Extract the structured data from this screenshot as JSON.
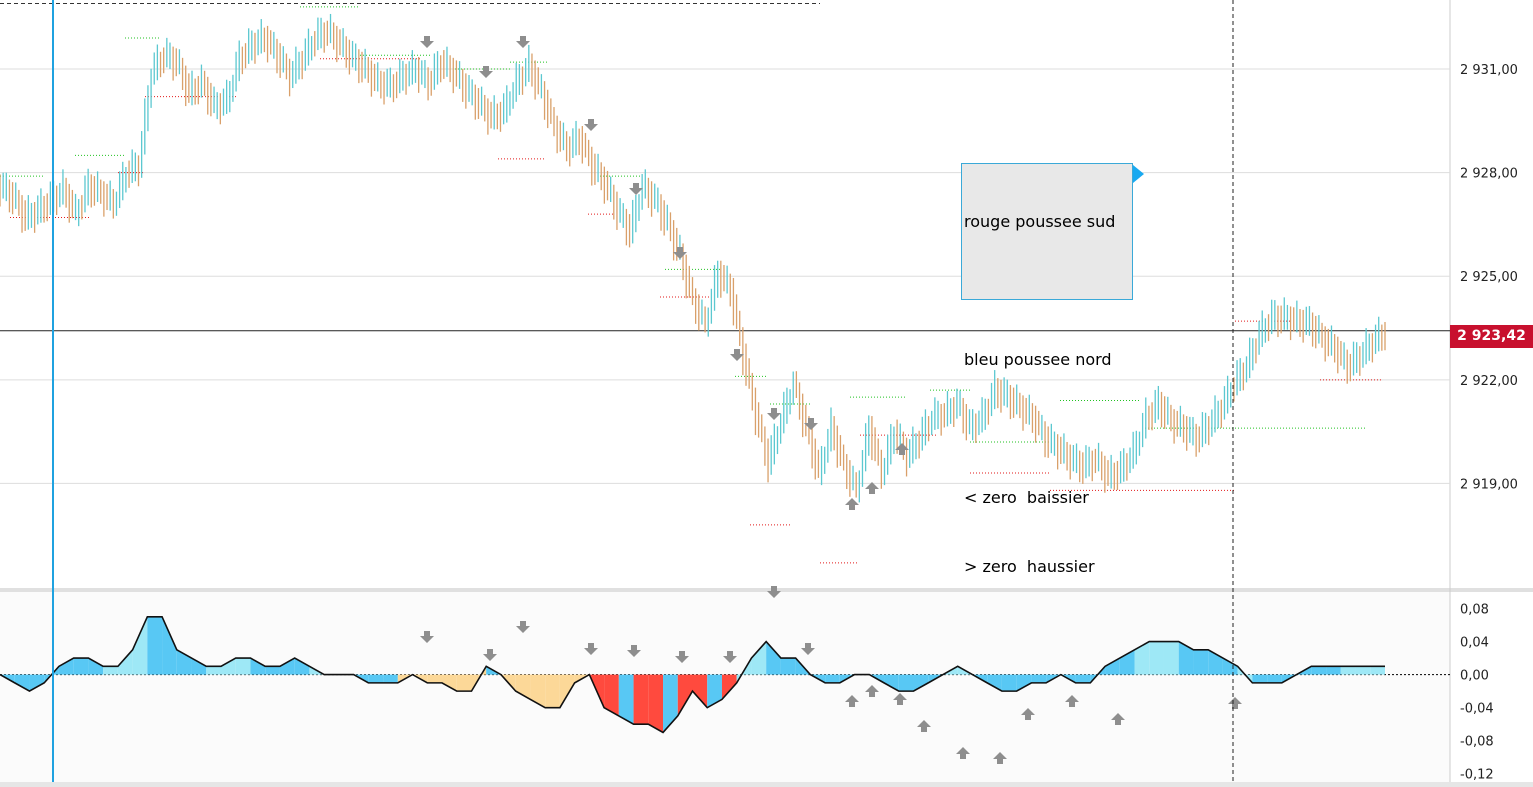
{
  "colors": {
    "bull": "#5cc8d0",
    "bear": "#d9a06a",
    "cursor": "#1fa2e0",
    "grid": "#dddddd",
    "upperHigh": "#22c222",
    "lowerLow": "#e21a1a",
    "oscBlue": "#58c8f4",
    "oscLightBlue": "#9ee8f6",
    "oscRed": "#ff4a3e",
    "oscOrange": "#fcd898",
    "arrow": "#8e8e8e",
    "badge": "#c8102e"
  },
  "price_badge": "2 923,42",
  "legend": {
    "line1": "rouge poussee sud",
    "line2": "",
    "line3": "bleu poussee nord",
    "line4": "",
    "line5": "< zero  baissier",
    "line6": "> zero  haussier"
  },
  "chart_data": [
    {
      "type": "line",
      "title": "",
      "xlabel": "",
      "ylabel": "",
      "ylim": [
        2916.0,
        2933.0
      ],
      "yticks": [
        "2 931,00",
        "2 928,00",
        "2 925,00",
        "2 922,00",
        "2 919,00"
      ],
      "ytick_values": [
        2931.0,
        2928.0,
        2925.0,
        2922.0,
        2919.0
      ],
      "current_price": 2923.42,
      "series": [
        {
          "values": [
            2927.6,
            2927.3,
            2926.7,
            2926.9,
            2927.2,
            2927.5,
            2926.8,
            2927.6,
            2927.4,
            2927.1,
            2928.0,
            2928.2,
            2930.9,
            2931.4,
            2931.2,
            2930.3,
            2930.6,
            2929.9,
            2930.1,
            2931.3,
            2931.7,
            2931.9,
            2931.4,
            2930.8,
            2931.3,
            2931.9,
            2932.1,
            2931.7,
            2931.3,
            2931.0,
            2930.6,
            2930.5,
            2930.8,
            2931.0,
            2930.6,
            2931.2,
            2930.9,
            2930.4,
            2930.0,
            2929.6,
            2929.8,
            2930.6,
            2931.1,
            2930.3,
            2929.3,
            2928.7,
            2929.0,
            2928.2,
            2927.7,
            2926.9,
            2926.3,
            2927.6,
            2927.2,
            2926.5,
            2925.6,
            2924.3,
            2923.6,
            2925.1,
            2924.6,
            2922.7,
            2921.0,
            2919.6,
            2920.8,
            2921.9,
            2920.6,
            2919.3,
            2920.6,
            2919.5,
            2918.8,
            2920.6,
            2919.3,
            2920.5,
            2919.8,
            2920.3,
            2920.9,
            2921.0,
            2921.3,
            2920.6,
            2920.9,
            2921.7,
            2921.5,
            2921.2,
            2920.9,
            2920.3,
            2920.0,
            2919.7,
            2919.5,
            2919.7,
            2919.2,
            2919.4,
            2919.9,
            2920.9,
            2921.3,
            2920.8,
            2920.6,
            2920.3,
            2920.7,
            2921.2,
            2921.9,
            2922.4,
            2923.3,
            2923.8,
            2923.8,
            2923.7,
            2923.6,
            2923.2,
            2922.9,
            2922.4,
            2922.7,
            2923.1,
            2923.4
          ]
        }
      ]
    },
    {
      "type": "area",
      "title": "",
      "xlabel": "",
      "ylabel": "",
      "ylim": [
        -0.13,
        0.1
      ],
      "yticks": [
        "0,08",
        "0,04",
        "0,00",
        "-0,04",
        "-0,08",
        "-0,12"
      ],
      "ytick_values": [
        0.08,
        0.04,
        0.0,
        -0.04,
        -0.08,
        -0.12
      ],
      "series": [
        {
          "values": [
            -0.0,
            -0.01,
            -0.02,
            -0.01,
            0.01,
            0.02,
            0.02,
            0.01,
            0.01,
            0.03,
            0.07,
            0.07,
            0.03,
            0.02,
            0.01,
            0.01,
            0.02,
            0.02,
            0.01,
            0.01,
            0.02,
            0.01,
            0.0,
            0.0,
            0.0,
            -0.01,
            -0.01,
            -0.01,
            -0.0,
            -0.01,
            -0.01,
            -0.02,
            -0.02,
            0.01,
            -0.0,
            -0.02,
            -0.03,
            -0.04,
            -0.04,
            -0.01,
            -0.0,
            -0.04,
            -0.05,
            -0.06,
            -0.06,
            -0.07,
            -0.05,
            -0.02,
            -0.04,
            -0.03,
            -0.01,
            0.02,
            0.04,
            0.02,
            0.02,
            0.0,
            -0.01,
            -0.01,
            -0.0,
            -0.0,
            -0.01,
            -0.02,
            -0.02,
            -0.01,
            0.0,
            0.01,
            0.0,
            -0.01,
            -0.02,
            -0.02,
            -0.01,
            -0.01,
            -0.0,
            -0.01,
            -0.01,
            0.01,
            0.02,
            0.03,
            0.04,
            0.04,
            0.04,
            0.03,
            0.03,
            0.02,
            0.01,
            -0.01,
            -0.01,
            -0.01,
            -0.0,
            0.01,
            0.01,
            0.01,
            0.01,
            0.01,
            0.01
          ]
        }
      ]
    }
  ]
}
